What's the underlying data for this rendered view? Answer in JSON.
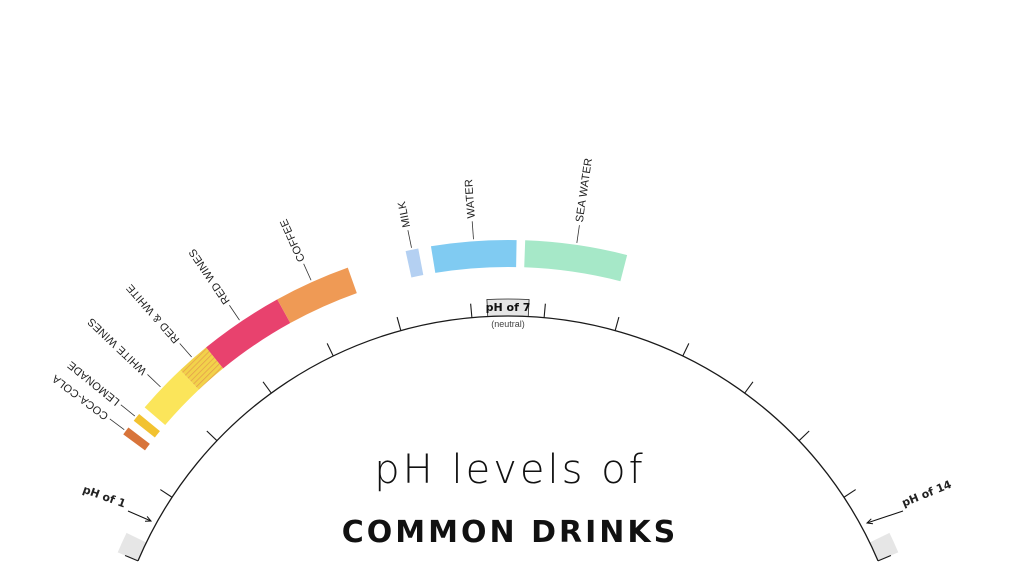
{
  "title": {
    "line1": "pH levels of",
    "line2": "COMMON DRINKS"
  },
  "scale": {
    "min": 1,
    "max": 14,
    "start_label": "pH of 1",
    "end_label": "pH of 14",
    "neutral_label": "pH of 7",
    "neutral_sub": "(neutral)"
  },
  "drinks": [
    {
      "label": "COCA-COLA",
      "ph_from": 2.3,
      "ph_to": 2.4,
      "color": "#d8743a"
    },
    {
      "label": "LEMONADE",
      "ph_from": 2.5,
      "ph_to": 2.6,
      "color": "#f2c230"
    },
    {
      "label": "WHITE WINES",
      "ph_from": 2.7,
      "ph_to": 3.3,
      "color": "#fbe55a"
    },
    {
      "label": "RED & WHITE",
      "ph_from": 3.3,
      "ph_to": 3.7,
      "color": "#f2d24a",
      "hatched": true
    },
    {
      "label": "RED WINES",
      "ph_from": 3.7,
      "ph_to": 4.7,
      "color": "#e8426e"
    },
    {
      "label": "COFFEE",
      "ph_from": 4.7,
      "ph_to": 5.6,
      "color": "#ef9a55"
    },
    {
      "label": "MILK",
      "ph_from": 6.3,
      "ph_to": 6.45,
      "color": "#b4d0f2"
    },
    {
      "label": "WATER",
      "ph_from": 6.6,
      "ph_to": 7.6,
      "color": "#80cbf2"
    },
    {
      "label": "SEA WATER",
      "ph_from": 7.7,
      "ph_to": 8.9,
      "color": "#a6e8c8"
    }
  ]
}
